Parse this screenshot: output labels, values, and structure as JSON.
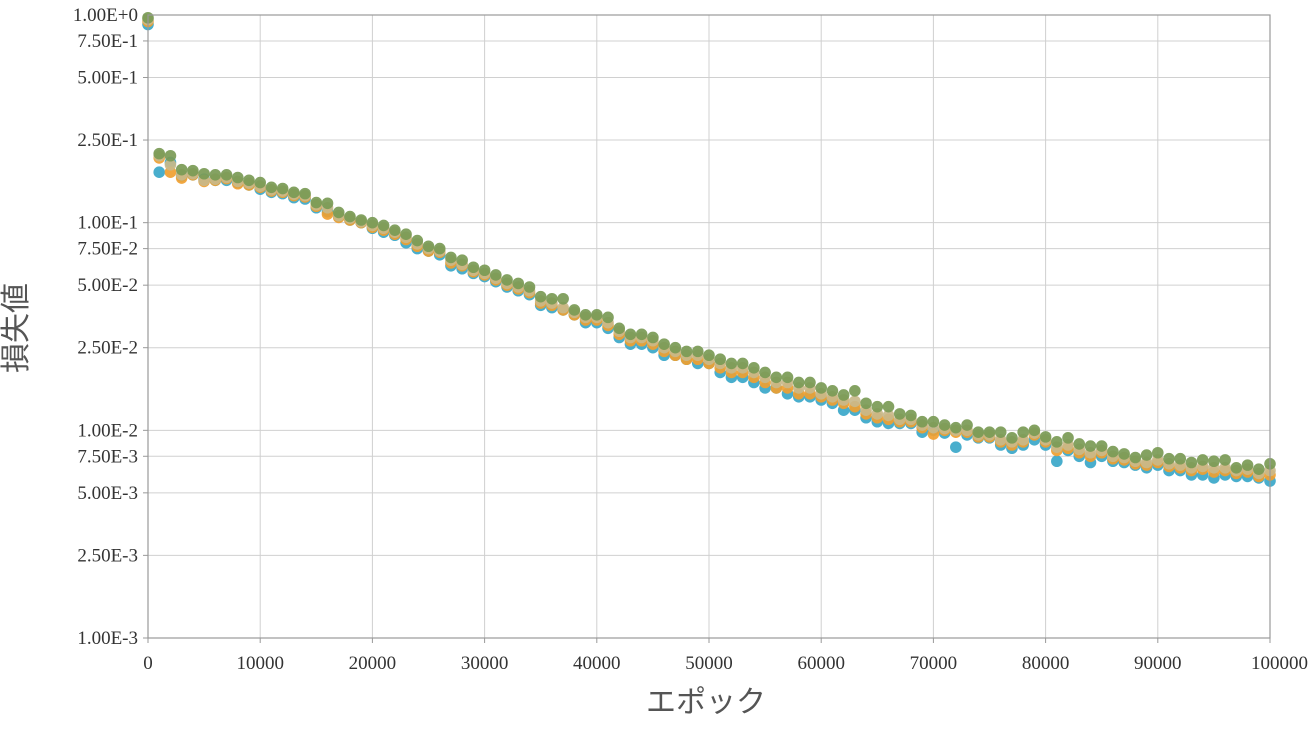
{
  "chart_data": {
    "type": "scatter",
    "title": "",
    "xlabel": "エポック",
    "ylabel": "損失値",
    "xlim": [
      0,
      100000
    ],
    "ylim": [
      0.001,
      1.0
    ],
    "y_scale": "log",
    "grid": true,
    "legend": "none",
    "x_ticks": [
      0,
      10000,
      20000,
      30000,
      40000,
      50000,
      60000,
      70000,
      80000,
      90000,
      100000
    ],
    "x_tick_labels": [
      "0",
      "10000",
      "20000",
      "30000",
      "40000",
      "50000",
      "60000",
      "70000",
      "80000",
      "90000",
      "100000"
    ],
    "y_ticks": [
      1.0,
      0.75,
      0.5,
      0.25,
      0.1,
      0.075,
      0.05,
      0.025,
      0.01,
      0.0075,
      0.005,
      0.0025,
      0.001
    ],
    "y_tick_labels": [
      "1.00E+0",
      "7.50E-1",
      "5.00E-1",
      "2.50E-1",
      "1.00E-1",
      "7.50E-2",
      "5.00E-2",
      "2.50E-2",
      "1.00E-2",
      "7.50E-3",
      "5.00E-3",
      "2.50E-3",
      "1.00E-3"
    ],
    "x": [
      0,
      1000,
      2000,
      3000,
      4000,
      5000,
      6000,
      7000,
      8000,
      9000,
      10000,
      11000,
      12000,
      13000,
      14000,
      15000,
      16000,
      17000,
      18000,
      19000,
      20000,
      21000,
      22000,
      23000,
      24000,
      25000,
      26000,
      27000,
      28000,
      29000,
      30000,
      31000,
      32000,
      33000,
      34000,
      35000,
      36000,
      37000,
      38000,
      39000,
      40000,
      41000,
      42000,
      43000,
      44000,
      45000,
      46000,
      47000,
      48000,
      49000,
      50000,
      51000,
      52000,
      53000,
      54000,
      55000,
      56000,
      57000,
      58000,
      59000,
      60000,
      61000,
      62000,
      63000,
      64000,
      65000,
      66000,
      67000,
      68000,
      69000,
      70000,
      71000,
      72000,
      73000,
      74000,
      75000,
      76000,
      77000,
      78000,
      79000,
      80000,
      81000,
      82000,
      83000,
      84000,
      85000,
      86000,
      87000,
      88000,
      89000,
      90000,
      91000,
      92000,
      93000,
      94000,
      95000,
      96000,
      97000,
      98000,
      99000,
      100000
    ],
    "series": [
      {
        "color": "#3aa7c9",
        "values": [
          0.9,
          0.175,
          0.195,
          0.168,
          0.17,
          0.162,
          0.16,
          0.16,
          0.156,
          0.152,
          0.145,
          0.14,
          0.138,
          0.132,
          0.13,
          0.118,
          0.113,
          0.107,
          0.103,
          0.1,
          0.094,
          0.09,
          0.087,
          0.08,
          0.075,
          0.073,
          0.07,
          0.062,
          0.06,
          0.057,
          0.055,
          0.052,
          0.049,
          0.047,
          0.045,
          0.04,
          0.039,
          0.038,
          0.036,
          0.033,
          0.033,
          0.031,
          0.028,
          0.026,
          0.026,
          0.025,
          0.023,
          0.023,
          0.022,
          0.021,
          0.021,
          0.019,
          0.018,
          0.018,
          0.017,
          0.016,
          0.016,
          0.015,
          0.0145,
          0.0145,
          0.014,
          0.0135,
          0.0125,
          0.0125,
          0.0115,
          0.011,
          0.0108,
          0.0108,
          0.0108,
          0.0098,
          0.01,
          0.0097,
          0.0083,
          0.0095,
          0.0092,
          0.0092,
          0.0085,
          0.0082,
          0.0085,
          0.009,
          0.0085,
          0.0071,
          0.008,
          0.0075,
          0.007,
          0.0075,
          0.0071,
          0.007,
          0.0068,
          0.0066,
          0.0068,
          0.0064,
          0.0064,
          0.0061,
          0.0061,
          0.0059,
          0.0061,
          0.006,
          0.006,
          0.0059,
          0.0057
        ]
      },
      {
        "color": "#f0a030",
        "values": [
          0.93,
          0.205,
          0.175,
          0.164,
          0.17,
          0.158,
          0.16,
          0.163,
          0.154,
          0.152,
          0.148,
          0.142,
          0.14,
          0.135,
          0.133,
          0.12,
          0.11,
          0.106,
          0.103,
          0.1,
          0.095,
          0.092,
          0.088,
          0.083,
          0.077,
          0.073,
          0.072,
          0.064,
          0.062,
          0.058,
          0.056,
          0.053,
          0.05,
          0.048,
          0.046,
          0.041,
          0.04,
          0.038,
          0.036,
          0.034,
          0.034,
          0.032,
          0.029,
          0.027,
          0.027,
          0.026,
          0.024,
          0.023,
          0.022,
          0.022,
          0.021,
          0.02,
          0.019,
          0.019,
          0.018,
          0.017,
          0.016,
          0.016,
          0.015,
          0.015,
          0.0145,
          0.014,
          0.0135,
          0.013,
          0.012,
          0.0115,
          0.0113,
          0.011,
          0.011,
          0.0103,
          0.0096,
          0.01,
          0.0098,
          0.0098,
          0.0093,
          0.0093,
          0.0088,
          0.0085,
          0.0088,
          0.0095,
          0.0088,
          0.008,
          0.0082,
          0.0078,
          0.0075,
          0.0078,
          0.0073,
          0.0072,
          0.0069,
          0.0068,
          0.007,
          0.0067,
          0.0066,
          0.0064,
          0.0065,
          0.0063,
          0.0064,
          0.0062,
          0.0063,
          0.006,
          0.0061
        ]
      },
      {
        "color": "#c9b98a",
        "values": [
          0.95,
          0.21,
          0.19,
          0.17,
          0.172,
          0.16,
          0.162,
          0.165,
          0.158,
          0.155,
          0.15,
          0.144,
          0.142,
          0.137,
          0.135,
          0.122,
          0.118,
          0.108,
          0.105,
          0.101,
          0.097,
          0.094,
          0.09,
          0.085,
          0.079,
          0.075,
          0.073,
          0.066,
          0.063,
          0.059,
          0.057,
          0.054,
          0.051,
          0.049,
          0.047,
          0.042,
          0.041,
          0.039,
          0.037,
          0.035,
          0.035,
          0.033,
          0.03,
          0.028,
          0.028,
          0.027,
          0.025,
          0.024,
          0.023,
          0.023,
          0.022,
          0.021,
          0.02,
          0.02,
          0.019,
          0.018,
          0.017,
          0.017,
          0.016,
          0.016,
          0.015,
          0.0145,
          0.014,
          0.0138,
          0.0125,
          0.012,
          0.0118,
          0.0113,
          0.0113,
          0.0106,
          0.0103,
          0.0102,
          0.01,
          0.01,
          0.0095,
          0.0095,
          0.009,
          0.0088,
          0.009,
          0.0097,
          0.009,
          0.0083,
          0.0085,
          0.0081,
          0.0078,
          0.008,
          0.0075,
          0.0074,
          0.0071,
          0.007,
          0.0072,
          0.0069,
          0.0068,
          0.0066,
          0.0067,
          0.0066,
          0.0066,
          0.0064,
          0.0065,
          0.0062,
          0.0064
        ]
      },
      {
        "color": "#7a9a55",
        "values": [
          0.97,
          0.215,
          0.21,
          0.18,
          0.178,
          0.172,
          0.17,
          0.17,
          0.165,
          0.16,
          0.156,
          0.148,
          0.146,
          0.14,
          0.138,
          0.125,
          0.124,
          0.112,
          0.107,
          0.103,
          0.1,
          0.097,
          0.092,
          0.088,
          0.082,
          0.077,
          0.075,
          0.068,
          0.066,
          0.061,
          0.059,
          0.056,
          0.053,
          0.051,
          0.049,
          0.044,
          0.043,
          0.043,
          0.038,
          0.036,
          0.036,
          0.035,
          0.031,
          0.029,
          0.029,
          0.028,
          0.026,
          0.025,
          0.024,
          0.024,
          0.023,
          0.022,
          0.021,
          0.021,
          0.02,
          0.019,
          0.018,
          0.018,
          0.017,
          0.017,
          0.016,
          0.0155,
          0.0148,
          0.0155,
          0.0135,
          0.013,
          0.013,
          0.012,
          0.0118,
          0.011,
          0.011,
          0.0106,
          0.0103,
          0.0106,
          0.0098,
          0.0098,
          0.0098,
          0.0092,
          0.0098,
          0.01,
          0.0093,
          0.0088,
          0.0092,
          0.0086,
          0.0084,
          0.0084,
          0.0079,
          0.0077,
          0.0074,
          0.0076,
          0.0078,
          0.0073,
          0.0073,
          0.007,
          0.0072,
          0.0071,
          0.0072,
          0.0066,
          0.0068,
          0.0065,
          0.0069
        ]
      }
    ]
  }
}
